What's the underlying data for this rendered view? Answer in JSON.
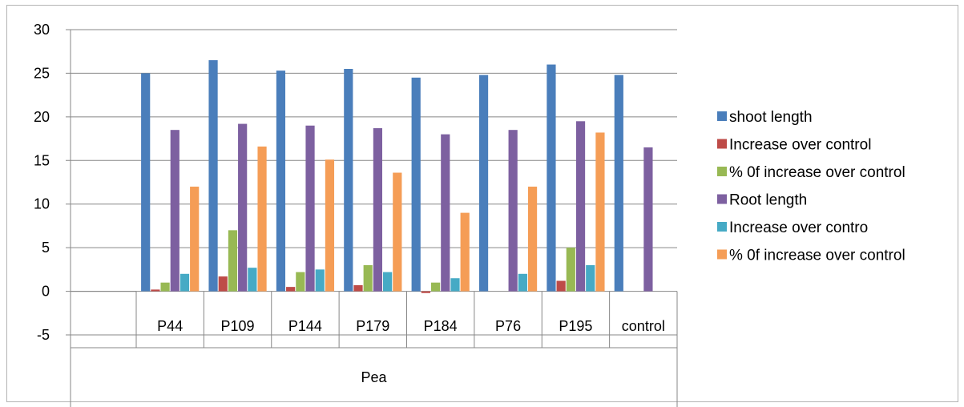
{
  "chart_data": {
    "type": "bar",
    "categories": [
      "P44",
      "P109",
      "P144",
      "P179",
      "P184",
      "P76",
      "P195",
      "control"
    ],
    "group_label": "Pea",
    "ylim": [
      -5,
      30
    ],
    "yticks": [
      -5,
      0,
      5,
      10,
      15,
      20,
      25,
      30
    ],
    "grid": true,
    "legend_position": "right",
    "series": [
      {
        "name": "shoot length",
        "color": "#4a7ebb",
        "values": [
          25.0,
          26.5,
          25.3,
          25.5,
          24.5,
          24.8,
          26.0,
          24.8
        ]
      },
      {
        "name": "Increase over control",
        "color": "#be4b48",
        "values": [
          0.2,
          1.7,
          0.5,
          0.7,
          -0.2,
          0,
          1.2,
          0
        ]
      },
      {
        "name": "% 0f increase over control",
        "color": "#98b954",
        "values": [
          1.0,
          7.0,
          2.2,
          3.0,
          1.0,
          0,
          5.0,
          0
        ]
      },
      {
        "name": "Root length",
        "color": "#7d60a0",
        "values": [
          18.5,
          19.2,
          19.0,
          18.7,
          18.0,
          18.5,
          19.5,
          16.5
        ]
      },
      {
        "name": "Increase over contro",
        "color": "#46aac5",
        "values": [
          2.0,
          2.7,
          2.5,
          2.2,
          1.5,
          2.0,
          3.0,
          0
        ]
      },
      {
        "name": "% 0f increase over control",
        "color": "#f59d56",
        "values": [
          12.0,
          16.6,
          15.1,
          13.6,
          9.0,
          12.0,
          18.2,
          0
        ]
      }
    ]
  }
}
